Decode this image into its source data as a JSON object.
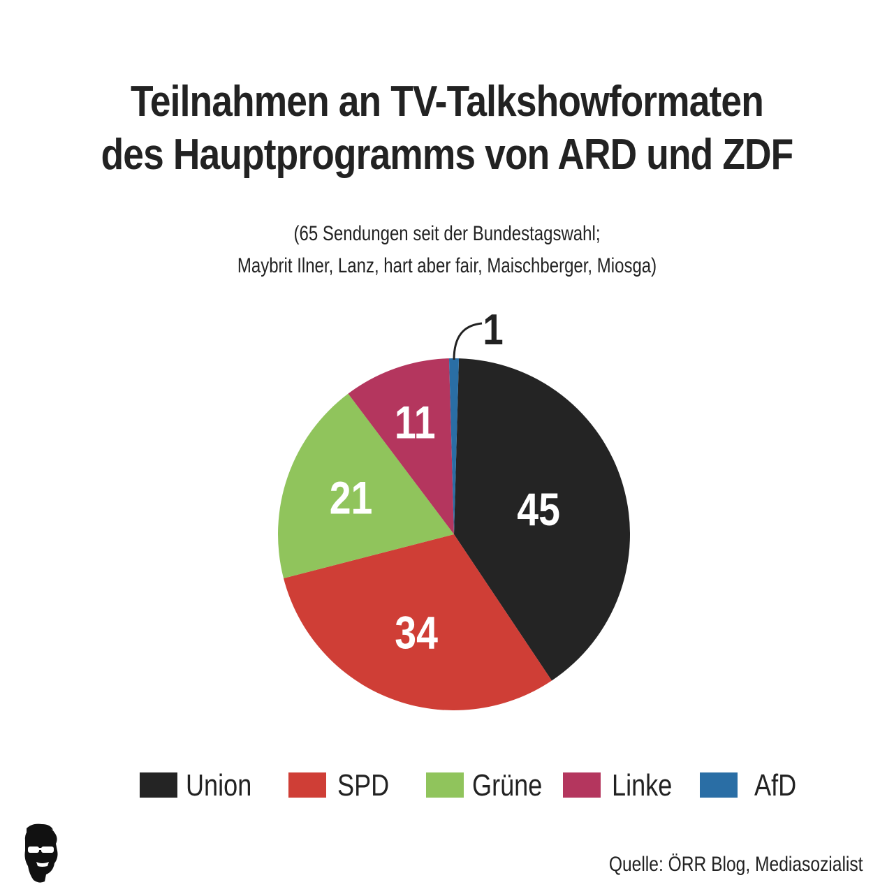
{
  "chart_data": {
    "type": "pie",
    "title_lines": [
      "Teilnahmen an TV-Talkshowformaten",
      "des Hauptprogramms von ARD und ZDF"
    ],
    "subtitle_lines": [
      "(65 Sendungen seit der Bundestagswahl;",
      "Maybrit Ilner, Lanz, hart aber fair, Maischberger, Miosga)"
    ],
    "slices": [
      {
        "name": "Union",
        "value": 45,
        "label": "45",
        "color": "#242424"
      },
      {
        "name": "SPD",
        "value": 34,
        "label": "34",
        "color": "#cf3e36"
      },
      {
        "name": "Grüne",
        "value": 21,
        "label": "21",
        "color": "#90c45c"
      },
      {
        "name": "Linke",
        "value": 11,
        "label": "11",
        "color": "#b4365e"
      },
      {
        "name": "AfD",
        "value": 1,
        "label": "1",
        "color": "#2a6ea5"
      }
    ],
    "legend_position": "bottom",
    "source": "Quelle: ÖRR Blog, Mediasozialist"
  },
  "logo_icon": "sunglasses-face-icon"
}
